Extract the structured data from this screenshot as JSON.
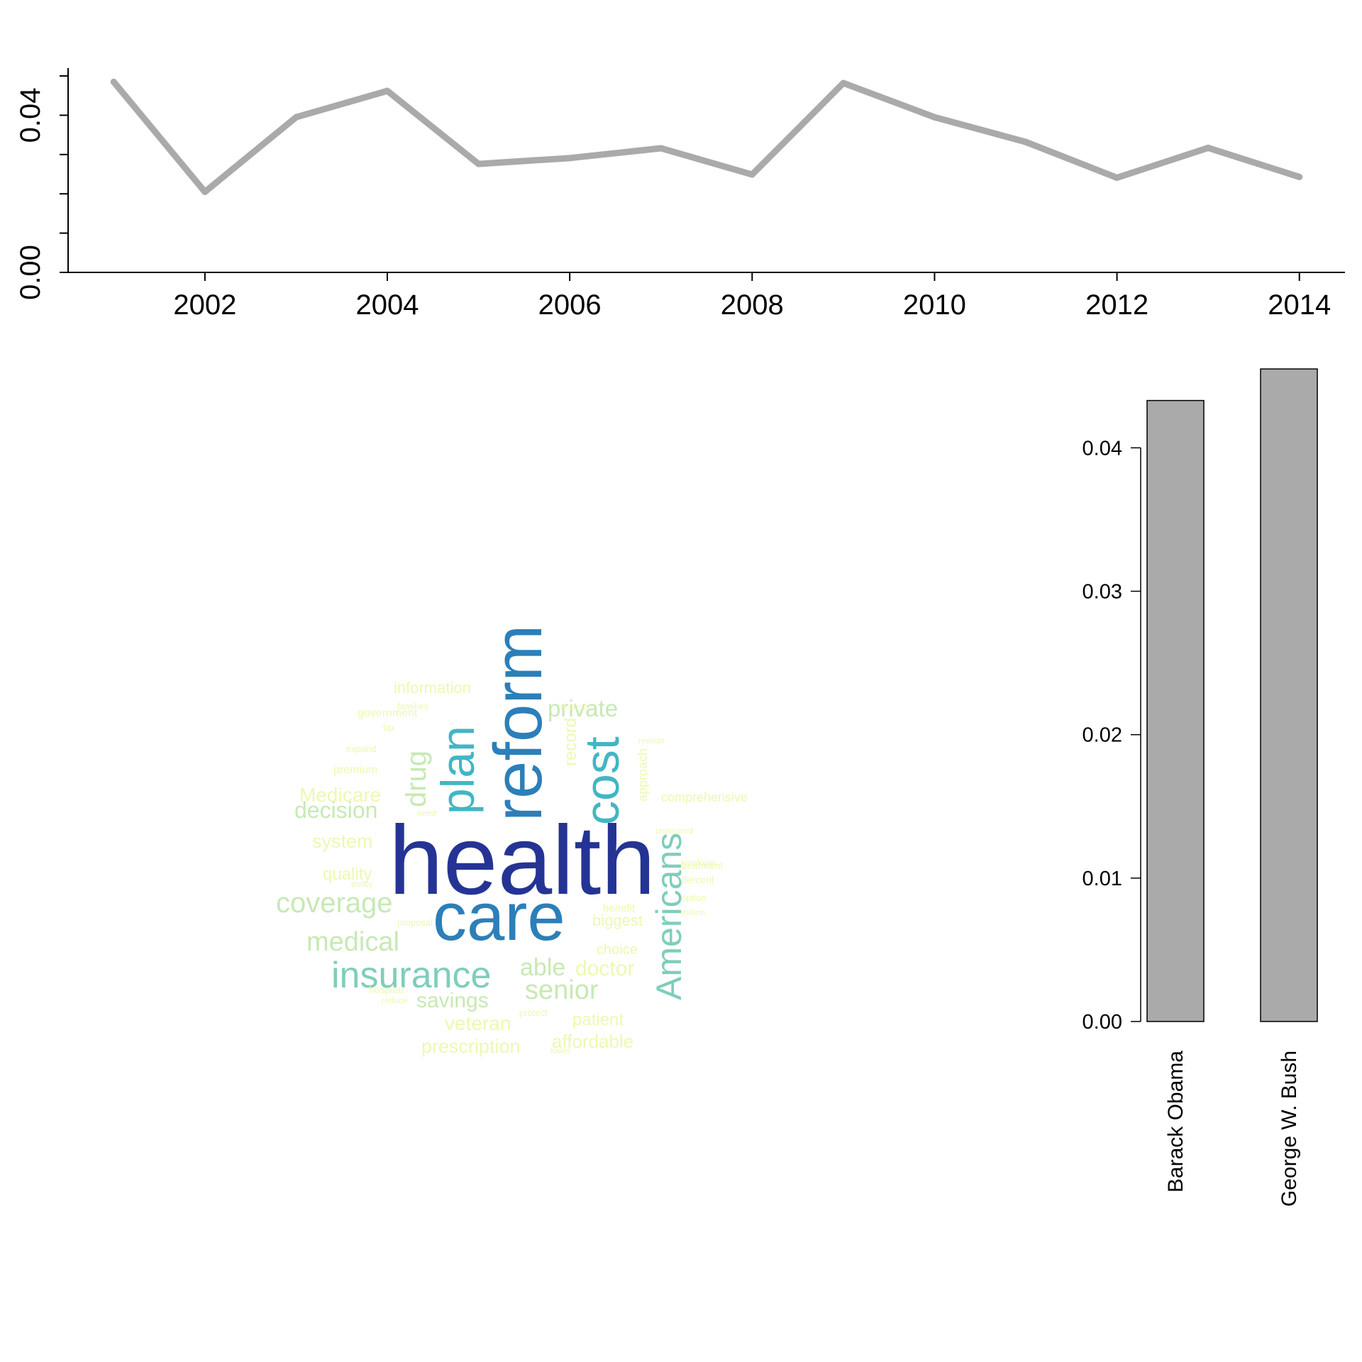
{
  "chart_data": [
    {
      "type": "line",
      "x": [
        2001,
        2002,
        2003,
        2004,
        2005,
        2006,
        2007,
        2008,
        2009,
        2010,
        2011,
        2012,
        2013,
        2014
      ],
      "values": [
        0.0485,
        0.0205,
        0.0395,
        0.0462,
        0.0276,
        0.0291,
        0.0316,
        0.0249,
        0.0482,
        0.0395,
        0.0332,
        0.0241,
        0.0317,
        0.0243
      ],
      "xticks": [
        "2002",
        "2004",
        "2006",
        "2008",
        "2010",
        "2012",
        "2014"
      ],
      "yticks": [
        "0.00",
        "0.04"
      ],
      "xlim": [
        2000.5,
        2014.5
      ],
      "ylim": [
        0,
        0.052
      ],
      "color": "#aaaaaa",
      "grid": false
    },
    {
      "type": "wordcloud",
      "words": [
        {
          "text": "health",
          "color": "#253494"
        },
        {
          "text": "care",
          "color": "#2c7fb8"
        },
        {
          "text": "reform",
          "color": "#2c7fb8"
        },
        {
          "text": "plan",
          "color": "#41b6c4"
        },
        {
          "text": "cost",
          "color": "#41b6c4"
        },
        {
          "text": "Americans",
          "color": "#7fcdbb"
        },
        {
          "text": "insurance",
          "color": "#7fcdbb"
        },
        {
          "text": "coverage",
          "color": "#c7e9b4"
        },
        {
          "text": "medical",
          "color": "#c7e9b4"
        },
        {
          "text": "drug",
          "color": "#c7e9b4"
        },
        {
          "text": "decision",
          "color": "#c7e9b4"
        },
        {
          "text": "private",
          "color": "#c7e9b4"
        },
        {
          "text": "senior",
          "color": "#c7e9b4"
        },
        {
          "text": "able",
          "color": "#c7e9b4"
        },
        {
          "text": "doctor",
          "color": "#edf8b1"
        },
        {
          "text": "savings",
          "color": "#c7e9b4"
        },
        {
          "text": "veteran",
          "color": "#edf8b1"
        },
        {
          "text": "prescription",
          "color": "#edf8b1"
        },
        {
          "text": "affordable",
          "color": "#edf8b1"
        },
        {
          "text": "patient",
          "color": "#edf8b1"
        },
        {
          "text": "Medicare",
          "color": "#edf8b1"
        },
        {
          "text": "system",
          "color": "#edf8b1"
        },
        {
          "text": "quality",
          "color": "#edf8b1"
        },
        {
          "text": "information",
          "color": "#edf8b1"
        },
        {
          "text": "record",
          "color": "#edf8b1"
        },
        {
          "text": "government",
          "color": "#edf8b1"
        },
        {
          "text": "premium",
          "color": "#edf8b1"
        },
        {
          "text": "comprehensive",
          "color": "#edf8b1"
        },
        {
          "text": "biggest",
          "color": "#edf8b1"
        },
        {
          "text": "choice",
          "color": "#edf8b1"
        },
        {
          "text": "approach",
          "color": "#edf8b1"
        },
        {
          "text": "benefit",
          "color": "#edf8b1"
        },
        {
          "text": "treatment",
          "color": "#edf8b1"
        },
        {
          "text": "percent",
          "color": "#edf8b1"
        },
        {
          "text": "option",
          "color": "#edf8b1"
        },
        {
          "text": "expand",
          "color": "#edf8b1"
        },
        {
          "text": "families",
          "color": "#edf8b1"
        },
        {
          "text": "proposal",
          "color": "#edf8b1"
        },
        {
          "text": "hospital",
          "color": "#edf8b1"
        },
        {
          "text": "reduce",
          "color": "#edf8b1"
        },
        {
          "text": "protect",
          "color": "#edf8b1"
        },
        {
          "text": "lower",
          "color": "#edf8b1"
        },
        {
          "text": "uninsured",
          "color": "#edf8b1"
        },
        {
          "text": "reason",
          "color": "#edf8b1"
        },
        {
          "text": "need",
          "color": "#edf8b1"
        },
        {
          "text": "policy",
          "color": "#edf8b1"
        },
        {
          "text": "million",
          "color": "#edf8b1"
        },
        {
          "text": "employer",
          "color": "#edf8b1"
        },
        {
          "text": "account",
          "color": "#edf8b1"
        },
        {
          "text": "tax",
          "color": "#edf8b1"
        }
      ]
    },
    {
      "type": "bar",
      "categories": [
        "Barack Obama",
        "George W. Bush"
      ],
      "values": [
        0.0433,
        0.0455
      ],
      "yticks": [
        "0.00",
        "0.01",
        "0.02",
        "0.03",
        "0.04"
      ],
      "ylim": [
        0,
        0.046
      ],
      "color": "#aaaaaa",
      "grid": false
    }
  ]
}
